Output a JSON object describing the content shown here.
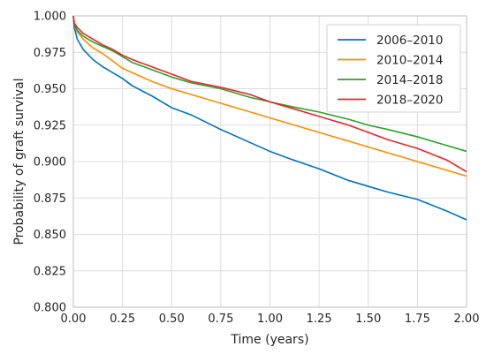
{
  "chart_data": {
    "type": "line",
    "xlabel": "Time (years)",
    "ylabel": "Probability of graft survival",
    "xlim": [
      0.0,
      2.0
    ],
    "ylim": [
      0.8,
      1.0
    ],
    "x_ticks": [
      "0.00",
      "0.25",
      "0.50",
      "0.75",
      "1.00",
      "1.25",
      "1.50",
      "1.75",
      "2.00"
    ],
    "y_ticks": [
      "0.800",
      "0.825",
      "0.850",
      "0.875",
      "0.900",
      "0.925",
      "0.950",
      "0.975",
      "1.000"
    ],
    "grid": true,
    "legend_position": "top-right",
    "series": [
      {
        "name": "2006–2010",
        "color": "#0072bd",
        "x": [
          0,
          0.005,
          0.02,
          0.05,
          0.1,
          0.15,
          0.2,
          0.25,
          0.3,
          0.4,
          0.5,
          0.6,
          0.75,
          0.9,
          1.0,
          1.1,
          1.25,
          1.4,
          1.5,
          1.6,
          1.75,
          1.9,
          2.0
        ],
        "y": [
          1.0,
          0.992,
          0.984,
          0.977,
          0.97,
          0.965,
          0.961,
          0.957,
          0.952,
          0.945,
          0.937,
          0.932,
          0.922,
          0.913,
          0.907,
          0.902,
          0.895,
          0.887,
          0.883,
          0.879,
          0.874,
          0.866,
          0.86
        ]
      },
      {
        "name": "2010–2014",
        "color": "#ff8c00",
        "x": [
          0,
          0.005,
          0.02,
          0.05,
          0.1,
          0.15,
          0.2,
          0.25,
          0.3,
          0.4,
          0.5,
          0.6,
          0.75,
          0.9,
          1.0,
          1.1,
          1.25,
          1.4,
          1.5,
          1.6,
          1.75,
          1.9,
          2.0
        ],
        "y": [
          1.0,
          0.994,
          0.989,
          0.984,
          0.978,
          0.974,
          0.969,
          0.964,
          0.961,
          0.955,
          0.95,
          0.946,
          0.94,
          0.934,
          0.93,
          0.926,
          0.92,
          0.914,
          0.91,
          0.906,
          0.9,
          0.894,
          0.89
        ]
      },
      {
        "name": "2014–2018",
        "color": "#2ca02c",
        "x": [
          0,
          0.005,
          0.02,
          0.05,
          0.1,
          0.15,
          0.2,
          0.25,
          0.3,
          0.4,
          0.5,
          0.6,
          0.75,
          0.9,
          1.0,
          1.1,
          1.25,
          1.4,
          1.5,
          1.6,
          1.75,
          1.9,
          2.0
        ],
        "y": [
          1.0,
          0.994,
          0.99,
          0.986,
          0.982,
          0.979,
          0.976,
          0.972,
          0.968,
          0.963,
          0.958,
          0.954,
          0.95,
          0.944,
          0.941,
          0.938,
          0.934,
          0.929,
          0.925,
          0.922,
          0.917,
          0.911,
          0.907
        ]
      },
      {
        "name": "2018–2020",
        "color": "#e8262a",
        "x": [
          0,
          0.005,
          0.02,
          0.05,
          0.1,
          0.15,
          0.2,
          0.25,
          0.3,
          0.4,
          0.5,
          0.6,
          0.75,
          0.9,
          1.0,
          1.1,
          1.25,
          1.4,
          1.5,
          1.6,
          1.75,
          1.9,
          2.0
        ],
        "y": [
          1.0,
          0.995,
          0.992,
          0.988,
          0.984,
          0.98,
          0.977,
          0.973,
          0.97,
          0.965,
          0.96,
          0.955,
          0.951,
          0.946,
          0.941,
          0.937,
          0.931,
          0.925,
          0.92,
          0.915,
          0.909,
          0.901,
          0.893
        ]
      }
    ]
  }
}
